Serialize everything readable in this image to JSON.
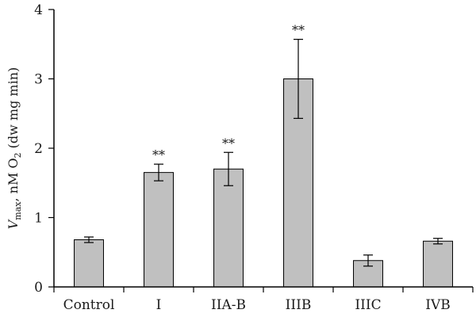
{
  "chart_data": {
    "type": "bar",
    "categories": [
      "Control",
      "I",
      "IIA-B",
      "IIIB",
      "IIIC",
      "IVB"
    ],
    "values": [
      0.68,
      1.65,
      1.7,
      3.0,
      0.38,
      0.66
    ],
    "errors": [
      0.04,
      0.12,
      0.24,
      0.57,
      0.08,
      0.04
    ],
    "annotations": [
      "",
      "**",
      "**",
      "**",
      "",
      ""
    ],
    "ylim": [
      0,
      4
    ],
    "yticks": [
      "0",
      "1",
      "2",
      "3",
      "4"
    ],
    "ylabel": {
      "italic": "V",
      "sub": "max",
      "main": ", nM O",
      "sub2": "2",
      "tail": " (dw mg min)"
    },
    "bar_color": "#c0c0c0",
    "grid": false
  }
}
